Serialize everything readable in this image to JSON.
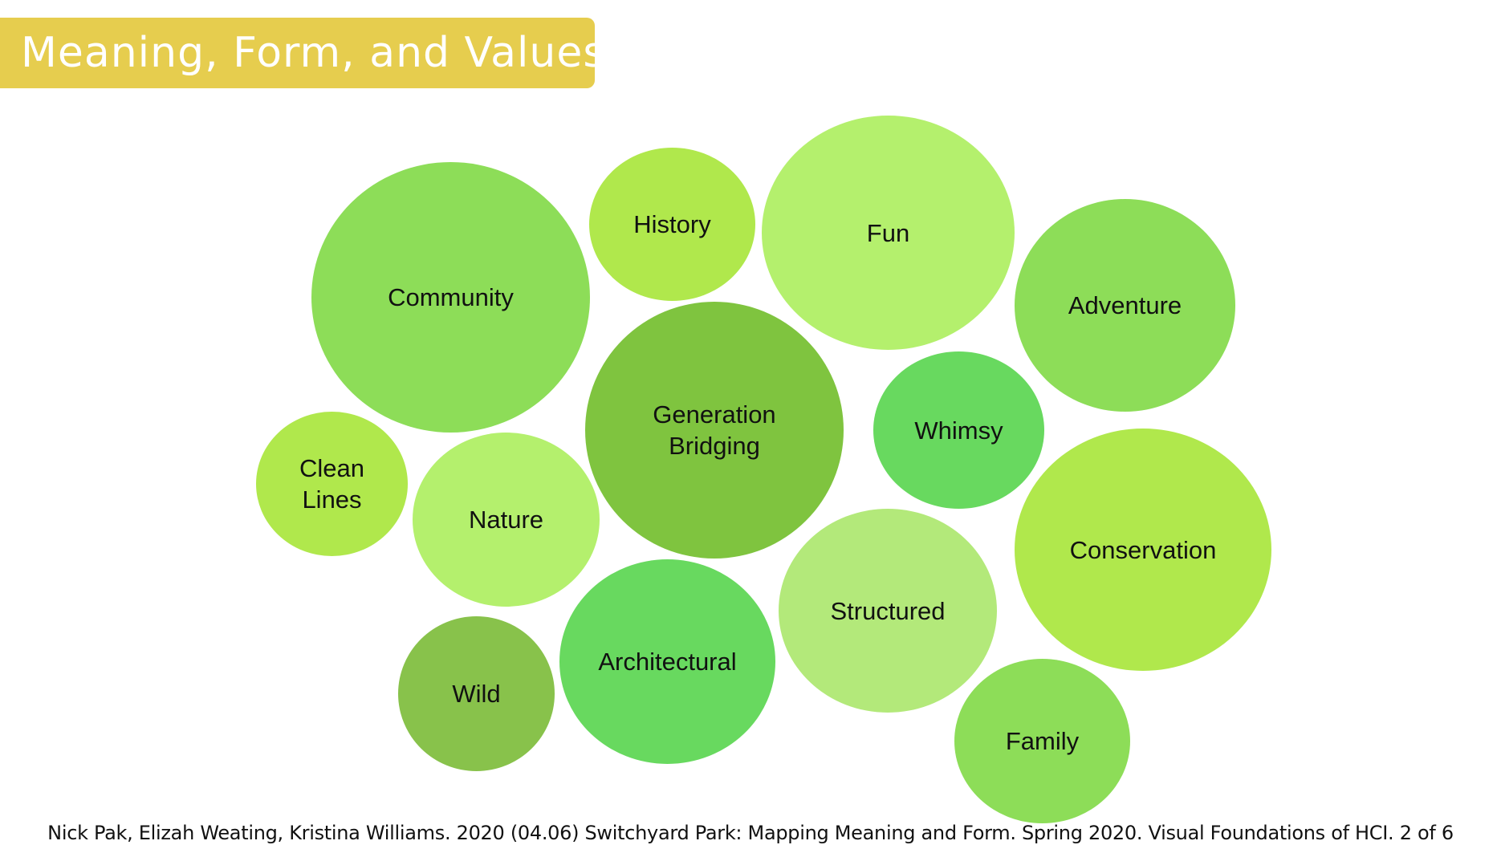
{
  "title": "Meaning, Form, and Values",
  "bubbles": [
    {
      "label": "Community",
      "color": "#8ddd58"
    },
    {
      "label": "History",
      "color": "#b0e84c"
    },
    {
      "label": "Fun",
      "color": "#b4f06d"
    },
    {
      "label": "Adventure",
      "color": "#8ddd58"
    },
    {
      "label": "Generation\nBridging",
      "color": "#7fc43f"
    },
    {
      "label": "Whimsy",
      "color": "#68d95f"
    },
    {
      "label": "Clean\nLines",
      "color": "#b0e84c"
    },
    {
      "label": "Nature",
      "color": "#b4f06d"
    },
    {
      "label": "Conservation",
      "color": "#b0e84c"
    },
    {
      "label": "Structured",
      "color": "#b3e97a"
    },
    {
      "label": "Wild",
      "color": "#88c24b"
    },
    {
      "label": "Architectural",
      "color": "#68d95f"
    },
    {
      "label": "Family",
      "color": "#8ddd58"
    }
  ],
  "caption": "Nick Pak, Elizah Weating, Kristina Williams. 2020 (04.06) Switchyard Park: Mapping Meaning and Form. Spring 2020. Visual Foundations of HCI. 2 of 6"
}
